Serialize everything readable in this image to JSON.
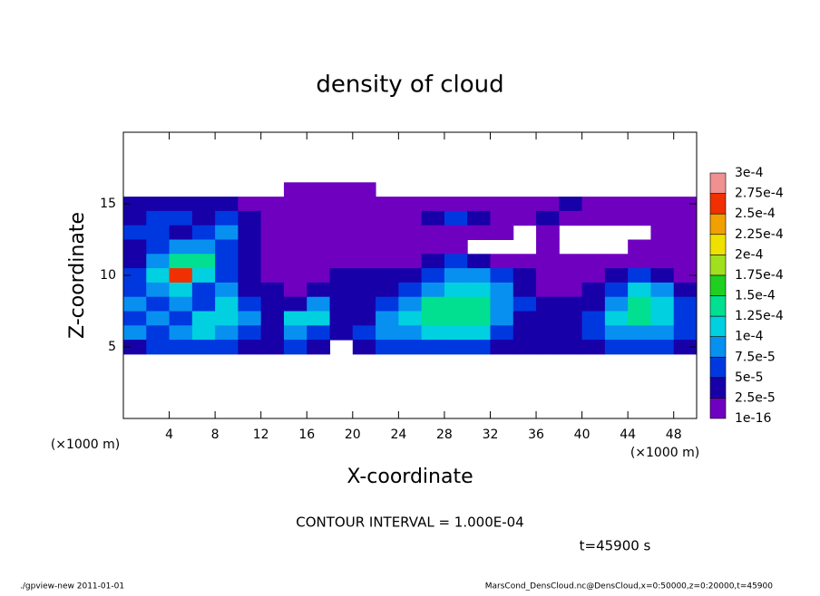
{
  "chart_data": {
    "type": "heatmap",
    "title": "density of cloud",
    "x_label": "X-coordinate",
    "y_label": "Z-coordinate",
    "x_unit": "(×1000 m)",
    "y_unit": "(×1000 m)",
    "contour_note": "CONTOUR INTERVAL = 1.000E-04",
    "time_note": "t=45900 s",
    "footer_left": "./gpview-new  2011-01-01",
    "footer_right": "MarsCond_DensCloud.nc@DensCloud,x=0:50000,z=0:20000,t=45900",
    "xlim": [
      0,
      50
    ],
    "ylim": [
      0,
      20
    ],
    "xticks": [
      4,
      8,
      12,
      16,
      20,
      24,
      28,
      32,
      36,
      40,
      44,
      48
    ],
    "yticks": [
      5,
      10,
      15
    ],
    "x": [
      1,
      3,
      5,
      7,
      9,
      11,
      13,
      15,
      17,
      19,
      21,
      23,
      25,
      27,
      29,
      31,
      33,
      35,
      37,
      39,
      41,
      43,
      45,
      47,
      49
    ],
    "z": [
      16,
      15,
      14,
      13,
      12,
      11,
      10,
      9,
      8,
      7,
      6,
      5
    ],
    "values": [
      [
        null,
        null,
        null,
        null,
        null,
        null,
        null,
        1e-05,
        1e-05,
        1e-05,
        1e-05,
        null,
        null,
        null,
        null,
        null,
        null,
        null,
        null,
        null,
        null,
        null,
        null,
        null,
        null
      ],
      [
        3e-05,
        3e-05,
        3e-05,
        3e-05,
        3e-05,
        1e-05,
        1e-05,
        1e-05,
        1e-05,
        1e-05,
        1e-05,
        1e-05,
        1e-05,
        1e-05,
        1e-05,
        1e-05,
        1e-05,
        1e-05,
        1e-05,
        3e-05,
        1e-05,
        1e-05,
        1e-05,
        1e-05,
        1e-05
      ],
      [
        3e-05,
        6e-05,
        6e-05,
        3e-05,
        6e-05,
        3e-05,
        1e-05,
        1e-05,
        1e-05,
        1e-05,
        1e-05,
        1e-05,
        1e-05,
        3e-05,
        6e-05,
        3e-05,
        1e-05,
        1e-05,
        3e-05,
        1e-05,
        1e-05,
        1e-05,
        1e-05,
        1e-05,
        1e-05
      ],
      [
        6e-05,
        6e-05,
        3e-05,
        6e-05,
        9e-05,
        3e-05,
        1e-05,
        1e-05,
        1e-05,
        1e-05,
        1e-05,
        1e-05,
        1e-05,
        1e-05,
        1e-05,
        1e-05,
        1e-05,
        null,
        1e-05,
        null,
        null,
        null,
        null,
        1e-05,
        1e-05
      ],
      [
        3e-05,
        6e-05,
        9e-05,
        9e-05,
        6e-05,
        3e-05,
        1e-05,
        1e-05,
        1e-05,
        1e-05,
        1e-05,
        1e-05,
        1e-05,
        1e-05,
        1e-05,
        null,
        null,
        null,
        1e-05,
        null,
        null,
        null,
        1e-05,
        1e-05,
        1e-05
      ],
      [
        3e-05,
        9e-05,
        0.00014,
        0.00013,
        6e-05,
        3e-05,
        1e-05,
        1e-05,
        1e-05,
        1e-05,
        1e-05,
        1e-05,
        1e-05,
        3e-05,
        6e-05,
        3e-05,
        1e-05,
        1e-05,
        1e-05,
        1e-05,
        1e-05,
        1e-05,
        1e-05,
        1e-05,
        1e-05
      ],
      [
        6e-05,
        0.00011,
        0.00026,
        0.00012,
        6e-05,
        3e-05,
        1e-05,
        1e-05,
        1e-05,
        3e-05,
        3e-05,
        3e-05,
        3e-05,
        6e-05,
        9e-05,
        9e-05,
        6e-05,
        3e-05,
        1e-05,
        1e-05,
        1e-05,
        3e-05,
        6e-05,
        3e-05,
        1e-05
      ],
      [
        6e-05,
        9e-05,
        0.00012,
        6e-05,
        9e-05,
        3e-05,
        3e-05,
        1e-05,
        3e-05,
        3e-05,
        3e-05,
        3e-05,
        6e-05,
        9e-05,
        0.00012,
        0.00012,
        9e-05,
        3e-05,
        1e-05,
        1e-05,
        3e-05,
        6e-05,
        0.00012,
        9e-05,
        3e-05
      ],
      [
        9e-05,
        6e-05,
        9e-05,
        6e-05,
        0.00012,
        6e-05,
        3e-05,
        3e-05,
        9e-05,
        3e-05,
        3e-05,
        6e-05,
        9e-05,
        0.00013,
        0.00015,
        0.00014,
        9e-05,
        6e-05,
        3e-05,
        3e-05,
        3e-05,
        9e-05,
        0.00014,
        0.00012,
        6e-05
      ],
      [
        6e-05,
        9e-05,
        6e-05,
        0.00011,
        0.00012,
        9e-05,
        3e-05,
        0.00012,
        0.00011,
        3e-05,
        3e-05,
        9e-05,
        0.00011,
        0.00013,
        0.00015,
        0.00013,
        9e-05,
        3e-05,
        3e-05,
        3e-05,
        6e-05,
        0.00011,
        0.00013,
        0.00011,
        6e-05
      ],
      [
        9e-05,
        6e-05,
        9e-05,
        0.00011,
        9e-05,
        6e-05,
        3e-05,
        9e-05,
        6e-05,
        3e-05,
        6e-05,
        9e-05,
        9e-05,
        0.00012,
        0.00012,
        0.00011,
        6e-05,
        3e-05,
        3e-05,
        3e-05,
        6e-05,
        9e-05,
        9e-05,
        9e-05,
        6e-05
      ],
      [
        3e-05,
        6e-05,
        6e-05,
        6e-05,
        6e-05,
        3e-05,
        3e-05,
        6e-05,
        3e-05,
        null,
        3e-05,
        6e-05,
        6e-05,
        6e-05,
        6e-05,
        6e-05,
        3e-05,
        3e-05,
        3e-05,
        3e-05,
        3e-05,
        6e-05,
        6e-05,
        6e-05,
        3e-05
      ]
    ],
    "levels": [
      {
        "value": 1e-16,
        "label": "1e-16"
      },
      {
        "value": 2.5e-05,
        "label": "2.5e-5"
      },
      {
        "value": 5e-05,
        "label": "5e-5"
      },
      {
        "value": 7.5e-05,
        "label": "7.5e-5"
      },
      {
        "value": 0.0001,
        "label": "1e-4"
      },
      {
        "value": 0.000125,
        "label": "1.25e-4"
      },
      {
        "value": 0.00015,
        "label": "1.5e-4"
      },
      {
        "value": 0.000175,
        "label": "1.75e-4"
      },
      {
        "value": 0.0002,
        "label": "2e-4"
      },
      {
        "value": 0.000225,
        "label": "2.25e-4"
      },
      {
        "value": 0.00025,
        "label": "2.5e-4"
      },
      {
        "value": 0.000275,
        "label": "2.75e-4"
      },
      {
        "value": 0.0003,
        "label": "3e-4"
      }
    ],
    "colors": [
      "#7000c0",
      "#1800a8",
      "#0038e0",
      "#0890f0",
      "#00d0e0",
      "#00e090",
      "#20d020",
      "#a0e020",
      "#f0e000",
      "#f0a000",
      "#f03000",
      "#f09090"
    ]
  }
}
